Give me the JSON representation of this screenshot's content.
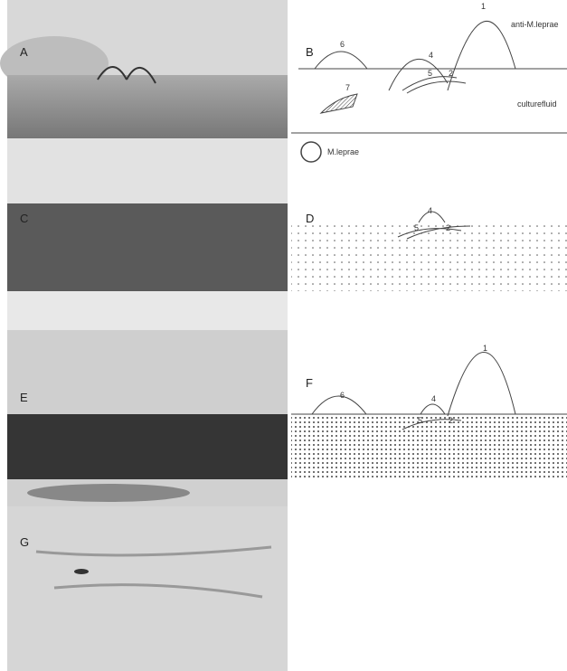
{
  "panel_labels": [
    "A",
    "B",
    "C",
    "D",
    "E",
    "F",
    "G"
  ],
  "diagram_b": {
    "antibody_label": "anti-M.leprae",
    "antigen_label": "culturefluid",
    "legend_label": "M.leprae",
    "arc_labels": [
      "1",
      "6",
      "4",
      "5",
      "2",
      "7"
    ]
  },
  "diagram_d": {
    "arc_labels": [
      "4",
      "5",
      "2"
    ]
  },
  "diagram_f": {
    "arc_labels": [
      "1",
      "6",
      "4",
      "5",
      "2"
    ]
  }
}
